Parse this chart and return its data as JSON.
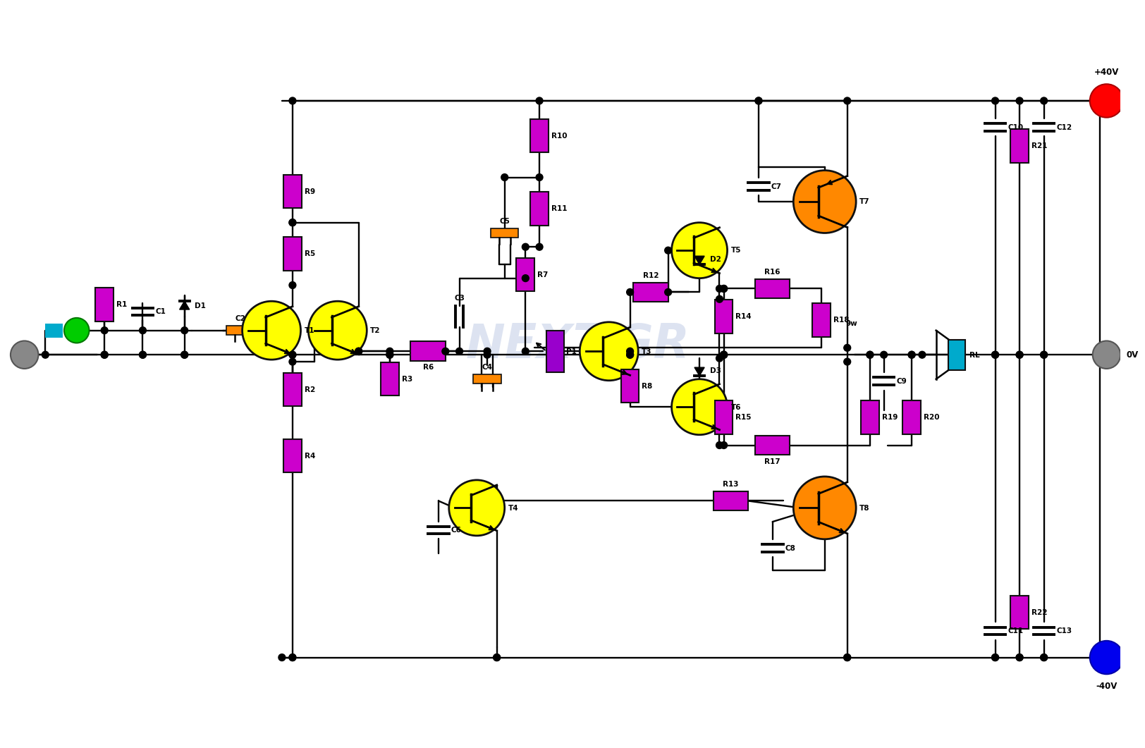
{
  "bg": "#FFFFFF",
  "wc": "#000000",
  "rc": "#CC00CC",
  "ty": "#FFFF00",
  "to": "#FF8800",
  "co": "#FF8800",
  "vp": "#FF0000",
  "vn": "#0000EE",
  "gc": "#888888",
  "ic": "#00CC00",
  "sc": "#00AACC",
  "lc": "#000000",
  "wm": "NEXT.GR",
  "wmc": "#AABBDD",
  "vpl": "+40V",
  "vnl": "-40V",
  "ovl": "0V"
}
